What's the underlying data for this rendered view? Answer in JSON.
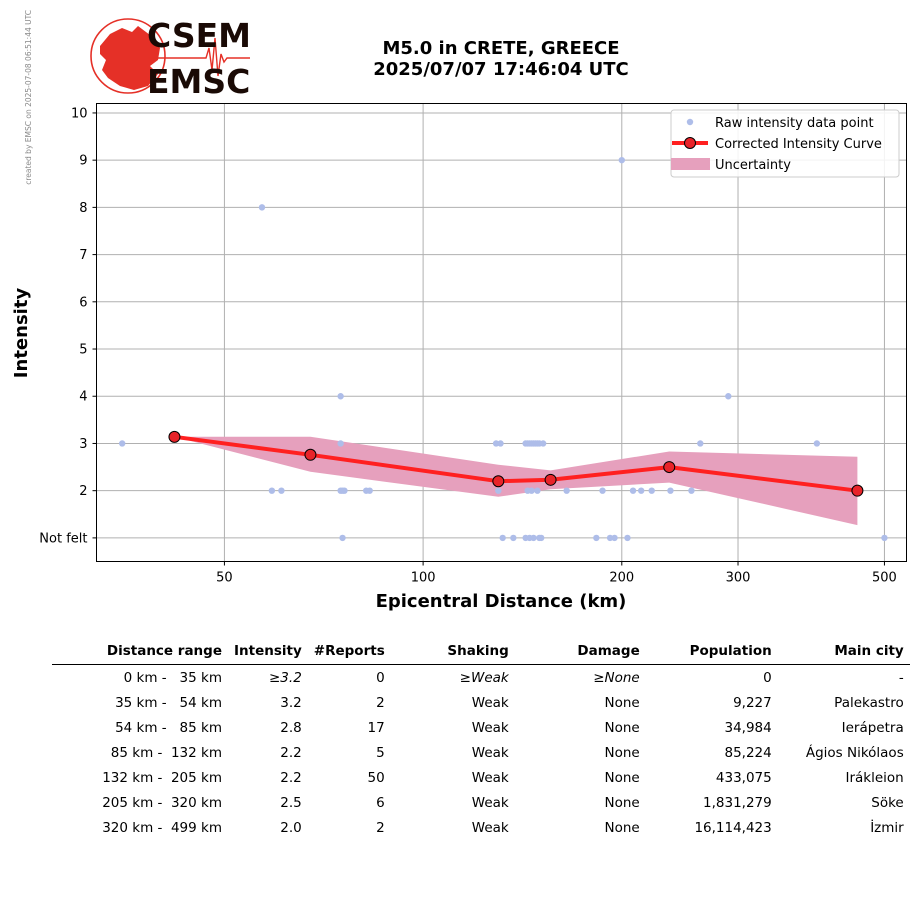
{
  "side_note": "created by EMSC on 2025-07-08 06:51:44 UTC",
  "logo": {
    "top": "CSEM",
    "bottom": "EMSC"
  },
  "title": {
    "line1": "M5.0 in CRETE, GREECE",
    "line2": "2025/07/07 17:46:04 UTC"
  },
  "colors": {
    "raw": "#aebde9",
    "curve": "#ff2020",
    "marker_face": "#e8242a",
    "band": "#e6a0bd",
    "logo_red": "#e53027",
    "logo_dark": "#1a0a05",
    "grid": "#b0b0b0"
  },
  "chart_data": {
    "type": "scatter",
    "x_scale": "log",
    "xlim": [
      32,
      540
    ],
    "ylim": [
      0.5,
      10.2
    ],
    "grid": true,
    "legend_position": "top-right",
    "xlabel": "Epicentral Distance (km)",
    "ylabel": "Intensity",
    "x_ticks": [
      50,
      100,
      200,
      300,
      500
    ],
    "x_tick_labels": [
      "50",
      "100",
      "200",
      "300",
      "500"
    ],
    "y_ticks": [
      1,
      2,
      3,
      4,
      5,
      6,
      7,
      8,
      9,
      10
    ],
    "y_tick_labels": [
      "Not felt",
      "2",
      "3",
      "4",
      "5",
      "6",
      "7",
      "8",
      "9",
      "10"
    ],
    "legend": [
      "Raw intensity data point",
      "Corrected Intensity Curve",
      "Uncertainty"
    ],
    "raw_points": [
      [
        35,
        3
      ],
      [
        57,
        8
      ],
      [
        59,
        2
      ],
      [
        61,
        2
      ],
      [
        75,
        4
      ],
      [
        75,
        3
      ],
      [
        75,
        2
      ],
      [
        75.5,
        2
      ],
      [
        76,
        2
      ],
      [
        75.5,
        1
      ],
      [
        82,
        2
      ],
      [
        83,
        2
      ],
      [
        129,
        3
      ],
      [
        131,
        3
      ],
      [
        130,
        2
      ],
      [
        132,
        1
      ],
      [
        137,
        1
      ],
      [
        143,
        3
      ],
      [
        144,
        3
      ],
      [
        145,
        3
      ],
      [
        146,
        3
      ],
      [
        147,
        3
      ],
      [
        148,
        3
      ],
      [
        149,
        3
      ],
      [
        150,
        3
      ],
      [
        152,
        3
      ],
      [
        144,
        2
      ],
      [
        146,
        2
      ],
      [
        149,
        2
      ],
      [
        143,
        1
      ],
      [
        145,
        1
      ],
      [
        147,
        1
      ],
      [
        150,
        1
      ],
      [
        151,
        1
      ],
      [
        165,
        2
      ],
      [
        183,
        1
      ],
      [
        187,
        2
      ],
      [
        192,
        1
      ],
      [
        195,
        1
      ],
      [
        200,
        9
      ],
      [
        204,
        1
      ],
      [
        208,
        2
      ],
      [
        214,
        2
      ],
      [
        222,
        2
      ],
      [
        237,
        2
      ],
      [
        255,
        2
      ],
      [
        263,
        3
      ],
      [
        290,
        4
      ],
      [
        395,
        3
      ],
      [
        500,
        1
      ]
    ],
    "series": [
      {
        "name": "Corrected Intensity Curve",
        "x": [
          42,
          67.5,
          130,
          156,
          236,
          455
        ],
        "y": [
          3.14,
          2.76,
          2.2,
          2.23,
          2.5,
          2.0
        ]
      },
      {
        "name": "Uncertainty",
        "x": [
          42,
          67.5,
          130,
          156,
          236,
          455
        ],
        "upper": [
          3.14,
          3.14,
          2.55,
          2.43,
          2.83,
          2.72
        ],
        "lower": [
          3.14,
          2.4,
          1.87,
          2.03,
          2.17,
          1.27
        ]
      }
    ]
  },
  "table": {
    "headers": [
      "Distance range",
      "Intensity",
      "#Reports",
      "Shaking",
      "Damage",
      "Population",
      "Main city"
    ],
    "rows": [
      [
        "0 km -   35 km",
        "≥3.2",
        "0",
        "≥Weak",
        "≥None",
        "0",
        "-"
      ],
      [
        "35 km -   54 km",
        "3.2",
        "2",
        "Weak",
        "None",
        "9,227",
        "Palekastro"
      ],
      [
        "54 km -   85 km",
        "2.8",
        "17",
        "Weak",
        "None",
        "34,984",
        "Ierápetra"
      ],
      [
        "85 km -  132 km",
        "2.2",
        "5",
        "Weak",
        "None",
        "85,224",
        "Ágios Nikólaos"
      ],
      [
        "132 km -  205 km",
        "2.2",
        "50",
        "Weak",
        "None",
        "433,075",
        "Irákleion"
      ],
      [
        "205 km -  320 km",
        "2.5",
        "6",
        "Weak",
        "None",
        "1,831,279",
        "Söke"
      ],
      [
        "320 km -  499 km",
        "2.0",
        "2",
        "Weak",
        "None",
        "16,114,423",
        "İzmir"
      ]
    ]
  }
}
